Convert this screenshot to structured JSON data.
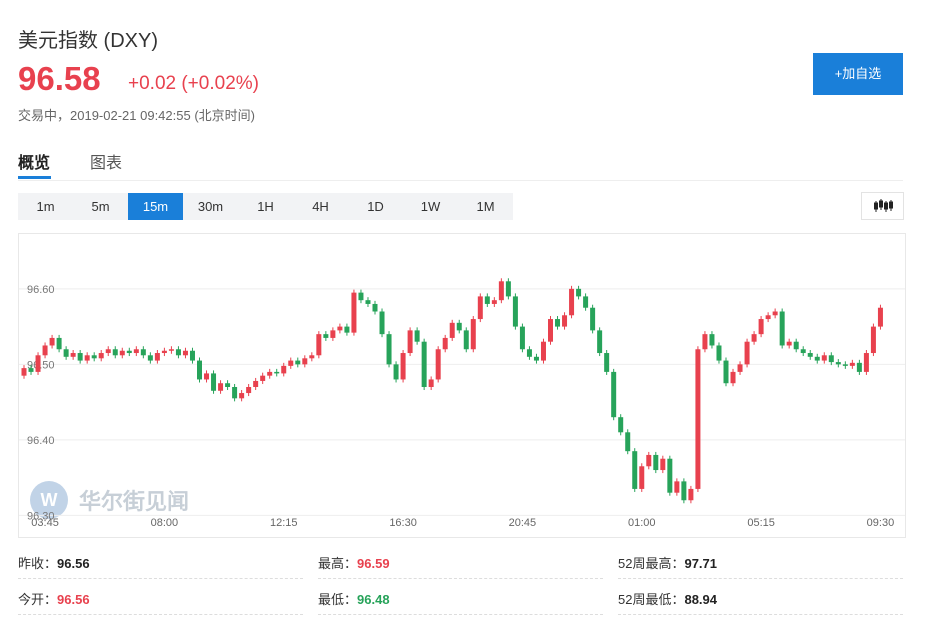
{
  "header": {
    "title": "美元指数 (DXY)",
    "price": "96.58",
    "change": "+0.02 (+0.02%)",
    "status": "交易中，2019-02-21 09:42:55 (北京时间)",
    "button": "+加自选"
  },
  "tabs": [
    "概览",
    "图表"
  ],
  "periods": [
    "1m",
    "5m",
    "15m",
    "30m",
    "1H",
    "4H",
    "1D",
    "1W",
    "1M"
  ],
  "watermark": "华尔街见闻",
  "chart_data": {
    "type": "candlestick",
    "categories": [
      null,
      null,
      null,
      "03:45",
      null,
      null,
      null,
      null,
      null,
      null,
      null,
      null,
      null,
      null,
      null,
      null,
      null,
      null,
      null,
      null,
      "08:00",
      null,
      null,
      null,
      null,
      null,
      null,
      null,
      null,
      null,
      null,
      null,
      null,
      null,
      null,
      null,
      null,
      "12:15",
      null,
      null,
      null,
      null,
      null,
      null,
      null,
      null,
      null,
      null,
      null,
      null,
      null,
      null,
      null,
      null,
      "16:30",
      null,
      null,
      null,
      null,
      null,
      null,
      null,
      null,
      null,
      null,
      null,
      null,
      null,
      null,
      null,
      null,
      "20:45",
      null,
      null,
      null,
      null,
      null,
      null,
      null,
      null,
      null,
      null,
      null,
      null,
      null,
      null,
      null,
      null,
      "01:00",
      null,
      null,
      null,
      null,
      null,
      null,
      null,
      null,
      null,
      null,
      null,
      null,
      null,
      null,
      null,
      null,
      "05:15",
      null,
      null,
      null,
      null,
      null,
      null,
      null,
      null,
      null,
      null,
      null,
      null,
      null,
      null,
      null,
      null,
      "09:30"
    ],
    "open": [
      96.485,
      96.495,
      96.49,
      96.512,
      96.525,
      96.535,
      96.52,
      96.51,
      96.515,
      96.505,
      96.512,
      96.508,
      96.515,
      96.52,
      96.512,
      96.518,
      96.515,
      96.52,
      96.512,
      96.505,
      96.515,
      96.518,
      96.52,
      96.512,
      96.518,
      96.505,
      96.48,
      96.488,
      96.465,
      96.475,
      96.47,
      96.455,
      96.462,
      96.47,
      96.478,
      96.485,
      96.49,
      96.488,
      96.498,
      96.505,
      96.5,
      96.508,
      96.512,
      96.54,
      96.535,
      96.545,
      96.55,
      96.542,
      96.595,
      96.585,
      96.58,
      96.57,
      96.54,
      96.5,
      96.48,
      96.515,
      96.545,
      96.53,
      96.47,
      96.48,
      96.52,
      96.535,
      96.555,
      96.545,
      96.52,
      96.56,
      96.59,
      96.58,
      96.585,
      96.61,
      96.59,
      96.55,
      96.52,
      96.51,
      96.505,
      96.53,
      96.56,
      96.55,
      96.565,
      96.6,
      96.59,
      96.575,
      96.545,
      96.515,
      96.49,
      96.43,
      96.41,
      96.385,
      96.335,
      96.365,
      96.38,
      96.36,
      96.375,
      96.33,
      96.345,
      96.32,
      96.335,
      96.52,
      96.54,
      96.525,
      96.505,
      96.475,
      96.49,
      96.5,
      96.53,
      96.54,
      96.56,
      96.565,
      96.57,
      96.525,
      96.53,
      96.52,
      96.515,
      96.51,
      96.505,
      96.512,
      96.503,
      96.5,
      96.498,
      96.502,
      96.49,
      96.515,
      96.55
    ],
    "high": [
      96.499,
      96.499,
      96.516,
      96.529,
      96.539,
      96.539,
      96.524,
      96.519,
      96.519,
      96.516,
      96.516,
      96.519,
      96.524,
      96.524,
      96.522,
      96.522,
      96.524,
      96.524,
      96.516,
      96.519,
      96.522,
      96.524,
      96.524,
      96.522,
      96.522,
      96.509,
      96.492,
      96.492,
      96.479,
      96.479,
      96.474,
      96.466,
      96.474,
      96.482,
      96.489,
      96.494,
      96.494,
      96.502,
      96.509,
      96.509,
      96.512,
      96.516,
      96.544,
      96.544,
      96.549,
      96.554,
      96.554,
      96.599,
      96.599,
      96.589,
      96.584,
      96.574,
      96.544,
      96.504,
      96.519,
      96.549,
      96.549,
      96.534,
      96.484,
      96.524,
      96.539,
      96.559,
      96.559,
      96.549,
      96.564,
      96.594,
      96.594,
      96.589,
      96.614,
      96.614,
      96.594,
      96.554,
      96.524,
      96.514,
      96.534,
      96.564,
      96.564,
      96.569,
      96.604,
      96.604,
      96.594,
      96.579,
      96.549,
      96.519,
      96.494,
      96.434,
      96.414,
      96.389,
      96.369,
      96.384,
      96.384,
      96.379,
      96.379,
      96.349,
      96.349,
      96.339,
      96.524,
      96.544,
      96.544,
      96.529,
      96.509,
      96.494,
      96.504,
      96.534,
      96.544,
      96.564,
      96.569,
      96.574,
      96.574,
      96.534,
      96.534,
      96.524,
      96.519,
      96.514,
      96.516,
      96.516,
      96.507,
      96.504,
      96.506,
      96.506,
      96.519,
      96.554,
      96.579
    ],
    "low": [
      96.481,
      96.486,
      96.486,
      96.508,
      96.521,
      96.516,
      96.506,
      96.506,
      96.501,
      96.501,
      96.504,
      96.504,
      96.511,
      96.508,
      96.508,
      96.511,
      96.511,
      96.508,
      96.501,
      96.501,
      96.511,
      96.514,
      96.508,
      96.508,
      96.501,
      96.476,
      96.476,
      96.461,
      96.461,
      96.466,
      96.451,
      96.451,
      96.458,
      96.466,
      96.474,
      96.481,
      96.484,
      96.484,
      96.494,
      96.496,
      96.496,
      96.504,
      96.508,
      96.531,
      96.531,
      96.541,
      96.538,
      96.538,
      96.581,
      96.576,
      96.566,
      96.536,
      96.496,
      96.476,
      96.476,
      96.511,
      96.526,
      96.466,
      96.466,
      96.476,
      96.516,
      96.531,
      96.541,
      96.516,
      96.516,
      96.556,
      96.576,
      96.576,
      96.581,
      96.586,
      96.546,
      96.516,
      96.506,
      96.501,
      96.501,
      96.526,
      96.546,
      96.546,
      96.561,
      96.586,
      96.571,
      96.541,
      96.511,
      96.486,
      96.426,
      96.406,
      96.381,
      96.331,
      96.331,
      96.361,
      96.356,
      96.356,
      96.326,
      96.326,
      96.316,
      96.316,
      96.331,
      96.516,
      96.521,
      96.501,
      96.471,
      96.471,
      96.486,
      96.496,
      96.526,
      96.536,
      96.556,
      96.561,
      96.521,
      96.521,
      96.516,
      96.511,
      96.506,
      96.501,
      96.501,
      96.499,
      96.496,
      96.494,
      96.494,
      96.486,
      96.486,
      96.511,
      96.546
    ],
    "close": [
      96.495,
      96.49,
      96.512,
      96.525,
      96.535,
      96.52,
      96.51,
      96.515,
      96.505,
      96.512,
      96.508,
      96.515,
      96.52,
      96.512,
      96.518,
      96.515,
      96.52,
      96.512,
      96.505,
      96.515,
      96.518,
      96.52,
      96.512,
      96.518,
      96.505,
      96.48,
      96.488,
      96.465,
      96.475,
      96.47,
      96.455,
      96.462,
      96.47,
      96.478,
      96.485,
      96.49,
      96.488,
      96.498,
      96.505,
      96.5,
      96.508,
      96.512,
      96.54,
      96.535,
      96.545,
      96.55,
      96.542,
      96.595,
      96.585,
      96.58,
      96.57,
      96.54,
      96.5,
      96.48,
      96.515,
      96.545,
      96.53,
      96.47,
      96.48,
      96.52,
      96.535,
      96.555,
      96.545,
      96.52,
      96.56,
      96.59,
      96.58,
      96.585,
      96.61,
      96.59,
      96.55,
      96.52,
      96.51,
      96.505,
      96.53,
      96.56,
      96.55,
      96.565,
      96.6,
      96.59,
      96.575,
      96.545,
      96.515,
      96.49,
      96.43,
      96.41,
      96.385,
      96.335,
      96.365,
      96.38,
      96.36,
      96.375,
      96.33,
      96.345,
      96.32,
      96.335,
      96.52,
      96.54,
      96.525,
      96.505,
      96.475,
      96.49,
      96.5,
      96.53,
      96.54,
      96.56,
      96.565,
      96.57,
      96.525,
      96.53,
      96.52,
      96.515,
      96.51,
      96.505,
      96.512,
      96.503,
      96.5,
      96.498,
      96.502,
      96.49,
      96.515,
      96.55,
      96.575
    ],
    "up_color": "#e8414e",
    "down_color": "#27a35a",
    "ylim": [
      96.27,
      96.67
    ],
    "yticks": [
      {
        "value": 96.3,
        "label": "96.30"
      },
      {
        "value": 96.4,
        "label": "96.40"
      },
      {
        "value": 96.5,
        "label": "96.50"
      },
      {
        "value": 96.6,
        "label": "96.60"
      }
    ],
    "grid": true
  },
  "stats": [
    {
      "label": "昨收：",
      "value": "96.56"
    },
    {
      "label": "最高：",
      "value": "96.59"
    },
    {
      "label": "52周最高：",
      "value": "97.71"
    },
    {
      "label": "今开：",
      "value": "96.56"
    },
    {
      "label": "最低：",
      "value": "96.48"
    },
    {
      "label": "52周最低：",
      "value": "88.94"
    }
  ]
}
